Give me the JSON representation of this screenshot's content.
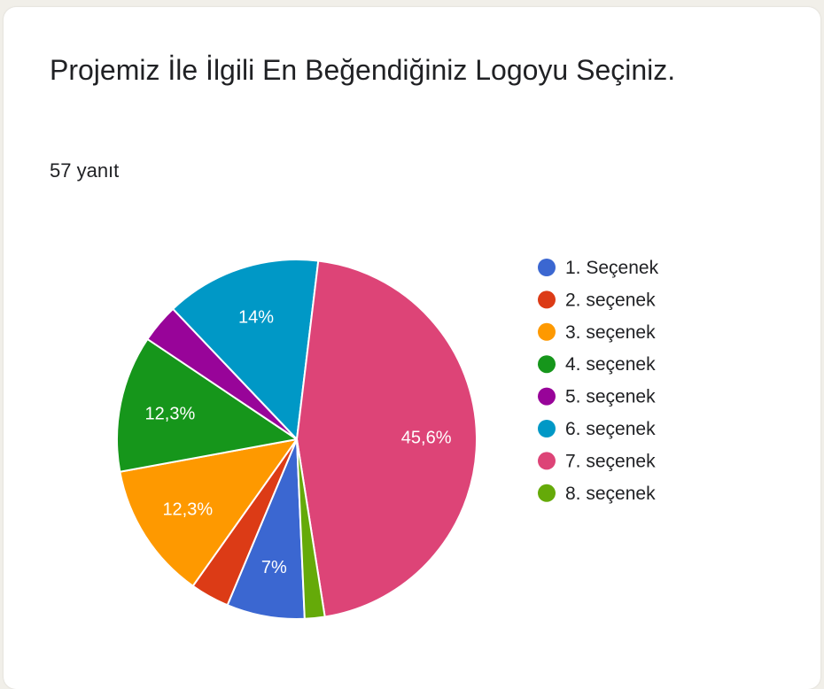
{
  "question": {
    "title": "Projemiz İle İlgili En Beğendiğiniz Logoyu Seçiniz.",
    "responses": "57 yanıt"
  },
  "chart_data": {
    "type": "pie",
    "title": "Projemiz İle İlgili En Beğendiğiniz Logoyu Seçiniz.",
    "legend_position": "right",
    "slices": [
      {
        "label": "1. Seçenek",
        "value": 7.0,
        "color": "#3b67d1",
        "data_label": "7%"
      },
      {
        "label": "2. seçenek",
        "value": 3.5,
        "color": "#dc3b16",
        "data_label": ""
      },
      {
        "label": "3. seçenek",
        "value": 12.3,
        "color": "#fe9900",
        "data_label": "12,3%"
      },
      {
        "label": "4. seçenek",
        "value": 12.3,
        "color": "#16961b",
        "data_label": "12,3%"
      },
      {
        "label": "5. seçenek",
        "value": 3.5,
        "color": "#980499",
        "data_label": ""
      },
      {
        "label": "6. seçenek",
        "value": 14.0,
        "color": "#0098c6",
        "data_label": "14%"
      },
      {
        "label": "7. seçenek",
        "value": 45.6,
        "color": "#dd4477",
        "data_label": "45,6%"
      },
      {
        "label": "8. seçenek",
        "value": 1.8,
        "color": "#65aa09",
        "data_label": ""
      }
    ]
  }
}
